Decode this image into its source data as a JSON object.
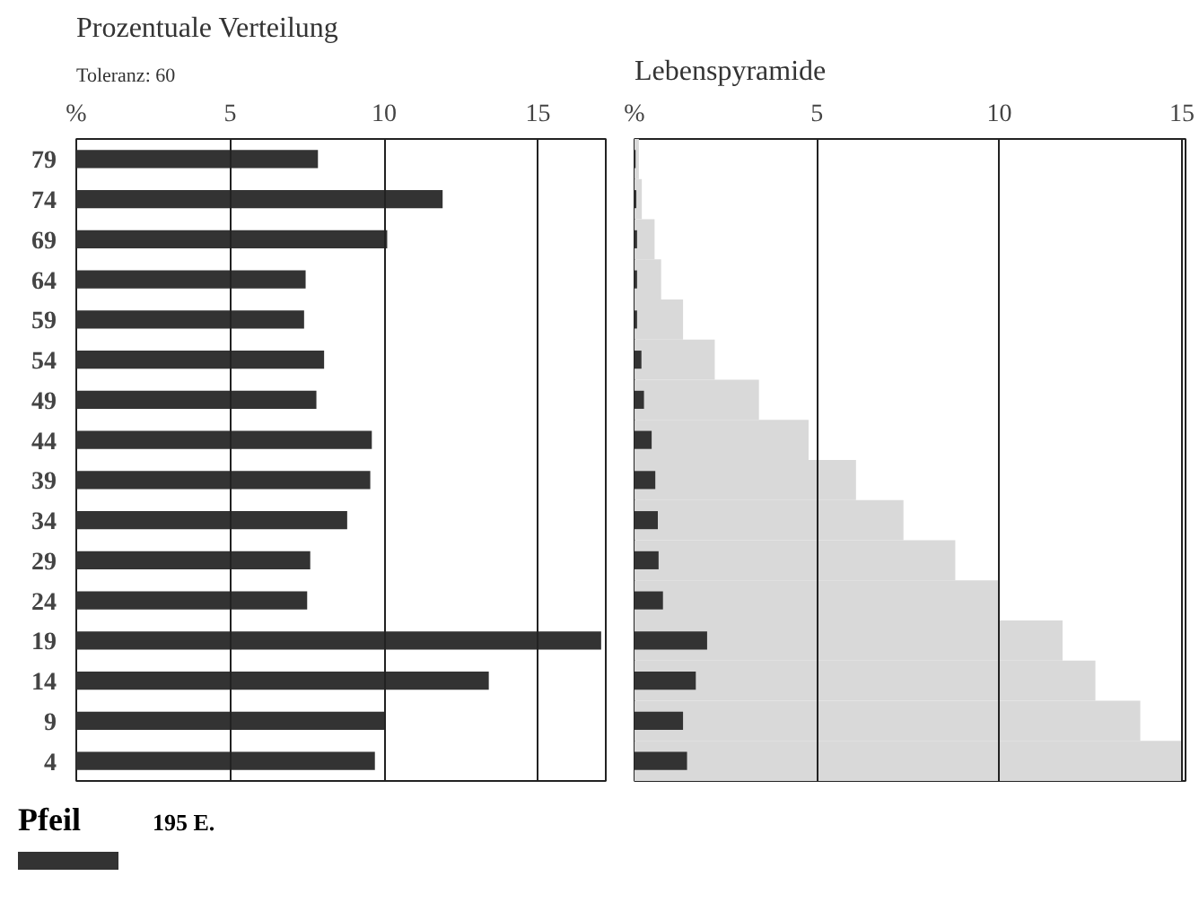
{
  "chart_data": [
    {
      "type": "bar",
      "orientation": "horizontal",
      "title": "Prozentuale Verteilung",
      "subtitle": "Toleranz: 60",
      "categories": [
        "79",
        "74",
        "69",
        "64",
        "59",
        "54",
        "49",
        "44",
        "39",
        "34",
        "29",
        "24",
        "19",
        "14",
        "9",
        "4"
      ],
      "series": [
        {
          "color": "#333333",
          "values": [
            7.85,
            11.9,
            10.1,
            7.45,
            7.4,
            8.05,
            7.8,
            9.6,
            9.55,
            8.8,
            7.6,
            7.5,
            17.05,
            13.4,
            10.0,
            9.7
          ]
        }
      ],
      "xlim": [
        0,
        17.2
      ],
      "xticks": [
        {
          "value": 0,
          "label": "%"
        },
        5,
        10,
        15
      ],
      "grid": "x",
      "annotations": [
        "Pfeil",
        "195 E."
      ]
    },
    {
      "type": "bar",
      "orientation": "horizontal",
      "title": "Lebenspyramide",
      "categories": [
        null,
        null,
        null,
        null,
        null,
        null,
        null,
        null,
        null,
        null,
        null,
        null,
        null,
        null,
        null,
        null
      ],
      "series": [
        {
          "color": "#d9d9d9",
          "values": [
            0.12,
            0.2,
            0.55,
            0.73,
            1.33,
            2.2,
            3.41,
            4.77,
            6.07,
            7.37,
            8.79,
            10.0,
            11.73,
            12.63,
            13.86,
            15.0
          ]
        },
        {
          "color": "#333333",
          "values": [
            0.03,
            0.05,
            0.07,
            0.07,
            0.07,
            0.19,
            0.26,
            0.47,
            0.57,
            0.64,
            0.66,
            0.78,
            1.99,
            1.68,
            1.33,
            1.44
          ]
        }
      ],
      "xlim": [
        0,
        15.1
      ],
      "xticks": [
        {
          "value": 0,
          "label": "%"
        },
        5,
        10,
        15
      ],
      "grid": "x",
      "tick_labels": "x"
    }
  ]
}
